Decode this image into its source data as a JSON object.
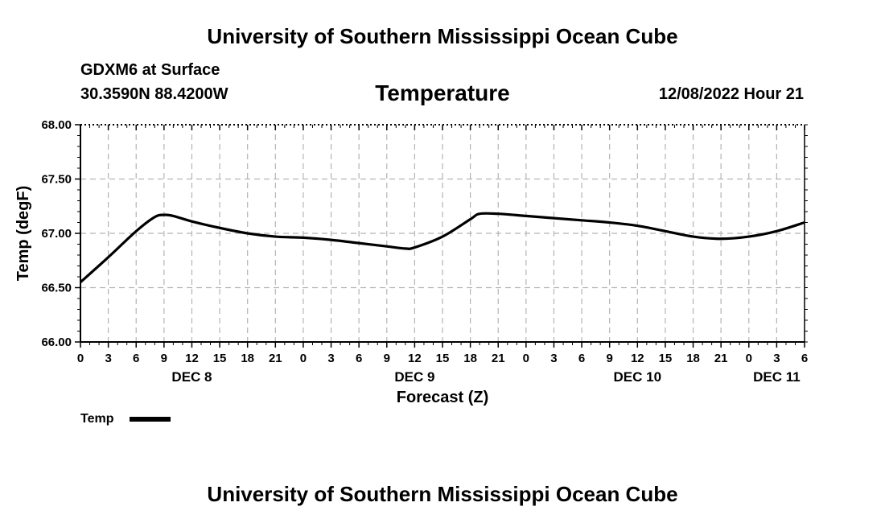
{
  "header": {
    "title_top": "University of Southern Mississippi Ocean Cube",
    "station": "GDXM6 at Surface",
    "coords": "30.3590N  88.4200W",
    "variable_title": "Temperature",
    "datetime": "12/08/2022 Hour 21"
  },
  "footer": {
    "title_bottom": "University of Southern Mississippi Ocean Cube"
  },
  "legend": {
    "label": "Temp"
  },
  "colors": {
    "line": "#000000",
    "grid": "#b4b4b4",
    "background": "#ffffff"
  },
  "chart_data": {
    "type": "line",
    "title": "Temperature",
    "xlabel": "Forecast (Z)",
    "ylabel": "Temp (degF)",
    "ylim": [
      66.0,
      68.0
    ],
    "yticks": [
      "66.00",
      "66.50",
      "67.00",
      "67.50",
      "68.00"
    ],
    "xlim_hours": [
      0,
      78
    ],
    "x_tick_labels": [
      "0",
      "3",
      "6",
      "9",
      "12",
      "15",
      "18",
      "21",
      "0",
      "3",
      "6",
      "9",
      "12",
      "15",
      "18",
      "21",
      "0",
      "3",
      "6",
      "9",
      "12",
      "15",
      "18",
      "21",
      "0",
      "3",
      "6"
    ],
    "day_labels": [
      {
        "label": "DEC 8",
        "hour": 12
      },
      {
        "label": "DEC 9",
        "hour": 36
      },
      {
        "label": "DEC 10",
        "hour": 60
      },
      {
        "label": "DEC 11",
        "hour": 75
      }
    ],
    "grid": true,
    "legend_position": "bottom-left",
    "series": [
      {
        "name": "Temp",
        "x_hours": [
          0,
          3,
          6,
          8,
          9,
          10,
          12,
          15,
          18,
          21,
          24,
          27,
          30,
          33,
          35,
          36,
          39,
          42,
          43,
          45,
          48,
          51,
          54,
          57,
          60,
          63,
          66,
          69,
          72,
          75,
          78
        ],
        "values": [
          66.55,
          66.78,
          67.02,
          67.15,
          67.17,
          67.16,
          67.11,
          67.05,
          67.0,
          66.97,
          66.96,
          66.94,
          66.91,
          66.88,
          66.86,
          66.87,
          66.97,
          67.13,
          67.18,
          67.18,
          67.16,
          67.14,
          67.12,
          67.1,
          67.07,
          67.02,
          66.97,
          66.95,
          66.97,
          67.02,
          67.1
        ]
      }
    ]
  }
}
